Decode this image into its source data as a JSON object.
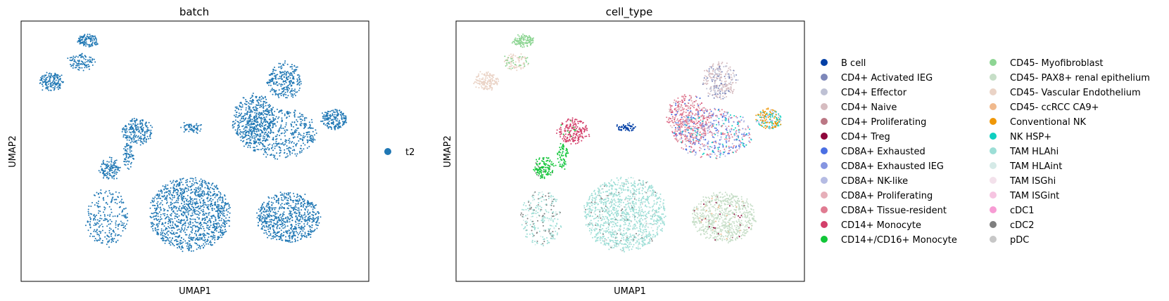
{
  "chart_data": [
    {
      "type": "scatter",
      "title": "batch",
      "xlabel": "UMAP1",
      "ylabel": "UMAP2",
      "legend": {
        "placement": "right",
        "entries": [
          {
            "name": "t2",
            "color": "#1f77b4"
          }
        ]
      },
      "clusters": [
        {
          "name": "t2",
          "color": "#1f77b4",
          "regions": "all"
        }
      ]
    },
    {
      "type": "scatter",
      "title": "cell_type",
      "xlabel": "UMAP1",
      "ylabel": "UMAP2",
      "legend": {
        "placement": "right",
        "columns": 2,
        "entries": [
          {
            "name": "B cell",
            "color": "#023fa5"
          },
          {
            "name": "CD4+ Activated IEG",
            "color": "#7d87b9"
          },
          {
            "name": "CD4+ Effector",
            "color": "#bec1d4"
          },
          {
            "name": "CD4+ Naive",
            "color": "#d6bcc0"
          },
          {
            "name": "CD4+ Proliferating",
            "color": "#bb7784"
          },
          {
            "name": "CD4+ Treg",
            "color": "#8e063b"
          },
          {
            "name": "CD8A+ Exhausted",
            "color": "#4a6fe3"
          },
          {
            "name": "CD8A+ Exhausted IEG",
            "color": "#8595e1"
          },
          {
            "name": "CD8A+ NK-like",
            "color": "#b5bbe3"
          },
          {
            "name": "CD8A+ Proliferating",
            "color": "#e6afb9"
          },
          {
            "name": "CD8A+ Tissue-resident",
            "color": "#e07b91"
          },
          {
            "name": "CD14+ Monocyte",
            "color": "#d33f6a"
          },
          {
            "name": "CD14+/CD16+ Monocyte",
            "color": "#11c638"
          },
          {
            "name": "CD45- Myofibroblast",
            "color": "#8dd593"
          },
          {
            "name": "CD45- PAX8+ renal epithelium",
            "color": "#c6dec7"
          },
          {
            "name": "CD45- Vascular Endothelium",
            "color": "#ead3c6"
          },
          {
            "name": "CD45- ccRCC CA9+",
            "color": "#f0b98d"
          },
          {
            "name": "Conventional NK",
            "color": "#ef9708"
          },
          {
            "name": "NK HSP+",
            "color": "#0fcfc0"
          },
          {
            "name": "TAM HLAhi",
            "color": "#9cded6"
          },
          {
            "name": "TAM HLAint",
            "color": "#d5eae7"
          },
          {
            "name": "TAM ISGhi",
            "color": "#f3e1eb"
          },
          {
            "name": "TAM ISGint",
            "color": "#f6c4e1"
          },
          {
            "name": "cDC1",
            "color": "#f79cd4"
          },
          {
            "name": "cDC2",
            "color": "#7f7f7f"
          },
          {
            "name": "pDC",
            "color": "#c7c7c7"
          }
        ]
      }
    }
  ]
}
